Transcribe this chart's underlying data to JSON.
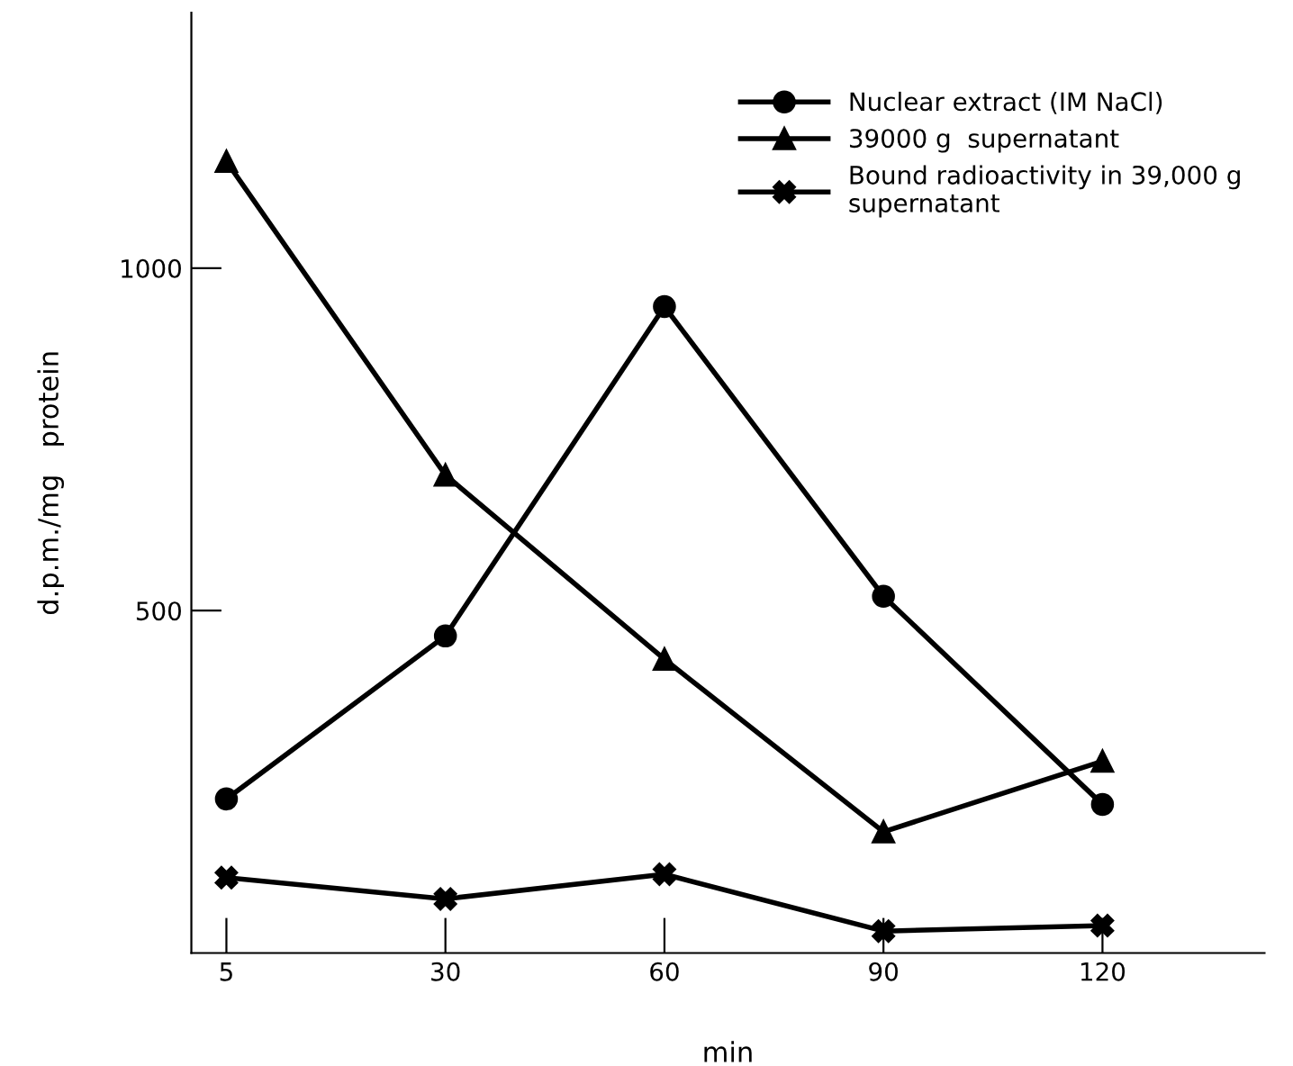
{
  "chart_data": {
    "type": "line",
    "xlabel": "min",
    "ylabel": "d.p.m./mg   protein",
    "categories": [
      "5",
      "30",
      "60",
      "90",
      "120"
    ],
    "series": [
      {
        "name": "Nuclear extract (IM NaCl)",
        "color": "#000000",
        "marker": "circle",
        "values": [
          225,
          463,
          944,
          521,
          217
        ]
      },
      {
        "name": "39000 g  supernatant",
        "color": "#000000",
        "marker": "triangle",
        "values": [
          1156,
          698,
          429,
          177,
          280
        ]
      },
      {
        "name": "Bound radioactivity in 39,000 g\nsupernatant",
        "color": "#000000",
        "marker": "cross",
        "values": [
          110,
          79,
          115,
          32,
          40
        ]
      }
    ],
    "ylim": [
      0,
      1373
    ],
    "yticks": [
      500,
      1000
    ],
    "grid": false,
    "legend": "top right",
    "line_style": "solid"
  }
}
